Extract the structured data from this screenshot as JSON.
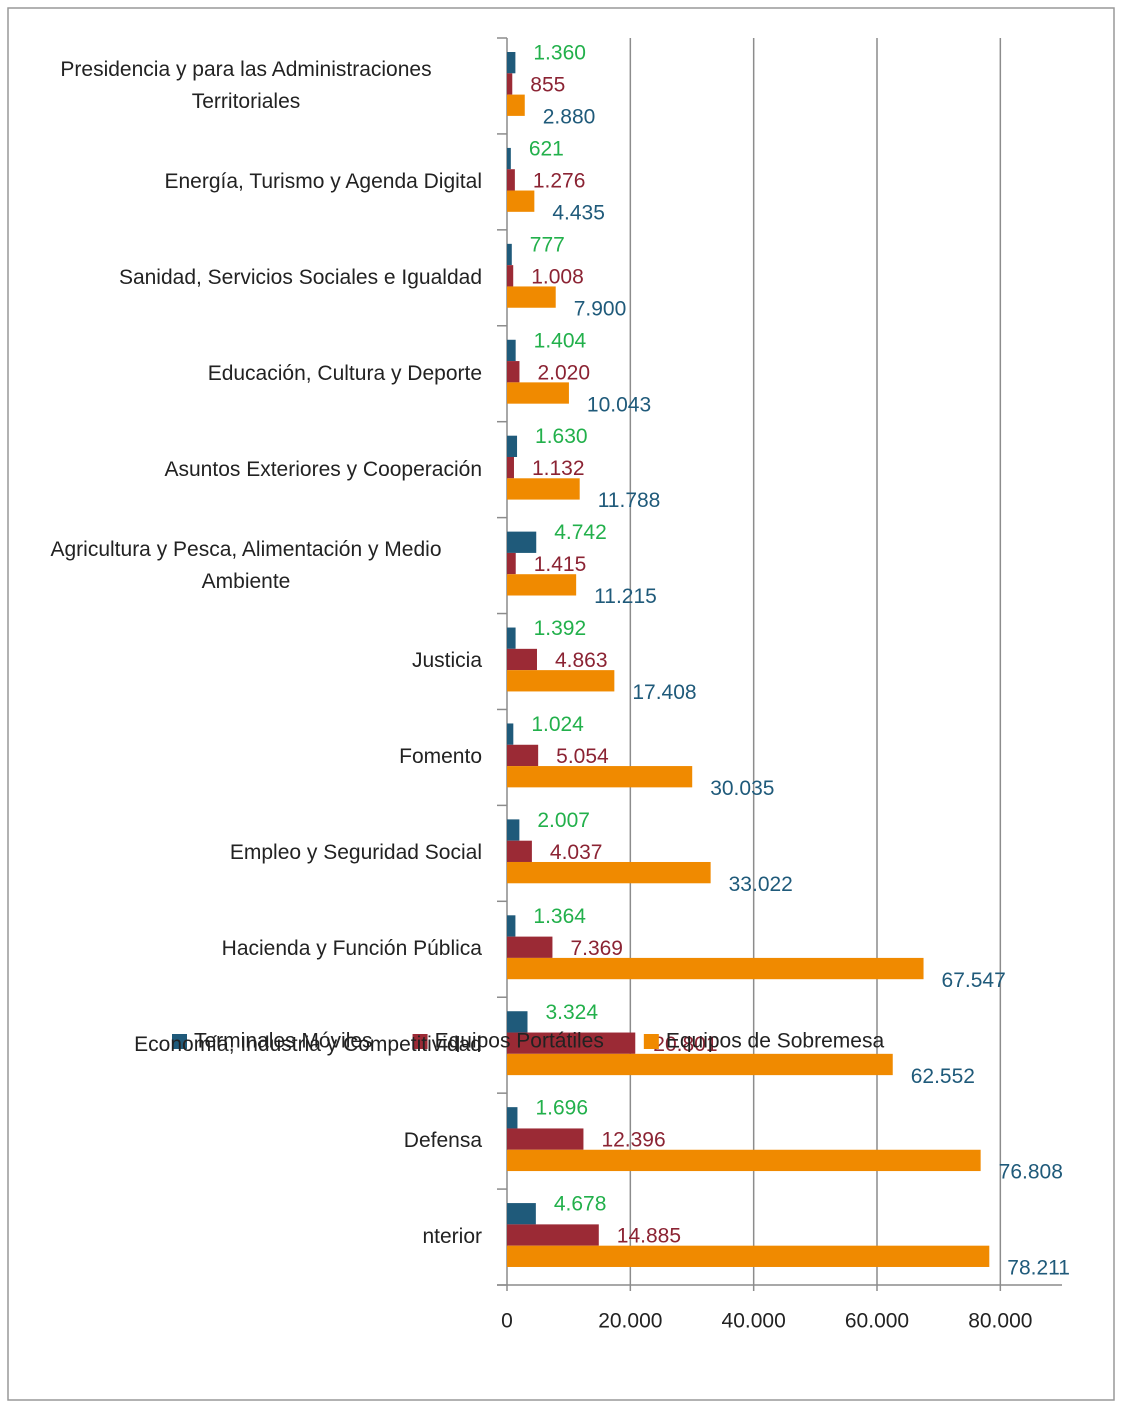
{
  "chart_data": {
    "type": "barh",
    "categories": [
      "Presidencia  y para las Administraciones Territoriales",
      "Energía, Turismo y Agenda Digital",
      "Sanidad, Servicios Sociales e Igualdad",
      "Educación, Cultura y Deporte",
      "Asuntos Exteriores y Cooperación",
      "Agricultura y Pesca, Alimentación y Medio Ambiente",
      "Justicia",
      "Fomento",
      "Empleo y Seguridad Social",
      "Hacienda y Función Pública",
      "Economía, Industria y Competitividad",
      "Defensa",
      "nterior"
    ],
    "series": [
      {
        "name": "Terminales Móviles",
        "color": "#1f5a7a",
        "label_color": "#22b04b",
        "values": [
          1360,
          621,
          777,
          1404,
          1630,
          4742,
          1392,
          1024,
          2007,
          1364,
          3324,
          1696,
          4678
        ],
        "value_labels": [
          "1.360",
          "621",
          "777",
          "1.404",
          "1.630",
          "4.742",
          "1.392",
          "1.024",
          "2.007",
          "1.364",
          "3.324",
          "1.696",
          "4.678"
        ]
      },
      {
        "name": "Equipos Portátiles",
        "color": "#9b2a35",
        "label_color": "#8b2333",
        "values": [
          855,
          1276,
          1008,
          2020,
          1132,
          1415,
          4863,
          5054,
          4037,
          7369,
          20801,
          12396,
          14885
        ],
        "value_labels": [
          "855",
          "1.276",
          "1.008",
          "2.020",
          "1.132",
          "1.415",
          "4.863",
          "5.054",
          "4.037",
          "7.369",
          "20.801",
          "12.396",
          "14.885"
        ]
      },
      {
        "name": "Equipos de Sobremesa",
        "color": "#f08a00",
        "label_color": "#1f5a7a",
        "values": [
          2880,
          4435,
          7900,
          10043,
          11788,
          11215,
          17408,
          30035,
          33022,
          67547,
          62552,
          76808,
          78211
        ],
        "value_labels": [
          "2.880",
          "4.435",
          "7.900",
          "10.043",
          "11.788",
          "11.215",
          "17.408",
          "30.035",
          "33.022",
          "67.547",
          "62.552",
          "76.808",
          "78.211"
        ]
      }
    ],
    "xlim": [
      0,
      90000
    ],
    "xticks": [
      0,
      {
        "value": 20000,
        "label": "20.000"
      },
      {
        "value": 40000,
        "label": "40.000"
      },
      {
        "value": 60000,
        "label": "60.000"
      },
      {
        "value": 80000,
        "label": "80.000"
      }
    ],
    "grid": true,
    "legend": "bottom"
  }
}
